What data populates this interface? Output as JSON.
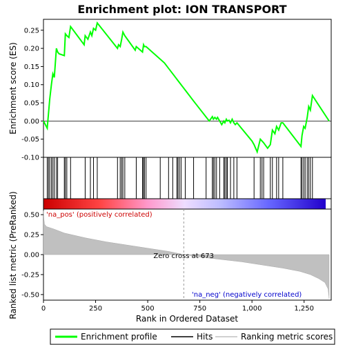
{
  "chart_data": {
    "type": "line",
    "title": "Enrichment plot: ION TRANSPORT",
    "es_panel": {
      "ylabel": "Enrichment score (ES)",
      "ylim": [
        -0.1,
        0.28
      ],
      "yticks": [
        "0.25",
        "0.20",
        "0.15",
        "0.10",
        "0.05",
        "0.00",
        "-0.05",
        "-0.10"
      ],
      "ytick_values": [
        0.25,
        0.2,
        0.15,
        0.1,
        0.05,
        0.0,
        -0.05,
        -0.1
      ],
      "series": [
        {
          "name": "Enrichment profile",
          "color": "#00ff00",
          "x": [
            0,
            18,
            24,
            30,
            38,
            45,
            52,
            62,
            68,
            75,
            100,
            105,
            112,
            122,
            130,
            195,
            200,
            213,
            225,
            232,
            240,
            250,
            258,
            355,
            360,
            368,
            375,
            381,
            390,
            440,
            445,
            455,
            475,
            480,
            484,
            492,
            580,
            600,
            620,
            640,
            660,
            680,
            700,
            720,
            795,
            810,
            815,
            822,
            830,
            835,
            845,
            855,
            865,
            870,
            877,
            882,
            890,
            897,
            905,
            913,
            920,
            928,
            1000,
            1010,
            1025,
            1040,
            1048,
            1056,
            1075,
            1088,
            1098,
            1110,
            1118,
            1128,
            1140,
            1148,
            1235,
            1240,
            1248,
            1255,
            1265,
            1272,
            1280,
            1290,
            1370
          ],
          "y": [
            0.0,
            -0.02,
            0.02,
            0.06,
            0.1,
            0.13,
            0.12,
            0.2,
            0.19,
            0.185,
            0.18,
            0.24,
            0.235,
            0.23,
            0.26,
            0.21,
            0.235,
            0.225,
            0.245,
            0.235,
            0.255,
            0.25,
            0.27,
            0.2,
            0.21,
            0.205,
            0.225,
            0.245,
            0.235,
            0.195,
            0.205,
            0.2,
            0.19,
            0.21,
            0.205,
            0.205,
            0.16,
            0.145,
            0.13,
            0.115,
            0.1,
            0.085,
            0.07,
            0.055,
            0.0,
            0.012,
            0.005,
            0.01,
            0.005,
            0.01,
            0.0,
            -0.01,
            0.0,
            -0.005,
            0.005,
            0.0,
            0.002,
            -0.005,
            0.005,
            -0.005,
            -0.01,
            -0.005,
            -0.055,
            -0.065,
            -0.085,
            -0.05,
            -0.055,
            -0.06,
            -0.075,
            -0.065,
            -0.025,
            -0.035,
            -0.015,
            -0.025,
            -0.005,
            -0.005,
            -0.07,
            -0.04,
            -0.015,
            -0.02,
            0.01,
            0.04,
            0.03,
            0.07,
            0.0
          ]
        }
      ]
    },
    "hits": {
      "name": "Hits",
      "color": "#000000",
      "ranks": [
        18,
        24,
        30,
        38,
        45,
        52,
        62,
        68,
        100,
        105,
        112,
        130,
        200,
        225,
        240,
        258,
        355,
        368,
        375,
        381,
        390,
        445,
        475,
        480,
        484,
        492,
        560,
        600,
        620,
        640,
        645,
        652,
        660,
        680,
        720,
        780,
        810,
        815,
        822,
        830,
        845,
        865,
        870,
        877,
        882,
        897,
        913,
        928,
        1010,
        1040,
        1048,
        1056,
        1088,
        1098,
        1118,
        1128,
        1148,
        1235,
        1240,
        1248,
        1255,
        1265,
        1272,
        1280,
        1290
      ]
    },
    "ranking_panel": {
      "name": "Ranking metric scores",
      "color": "#c0c0c0",
      "ylabel": "Ranked list metric (PreRanked)",
      "xlabel": "Rank in Ordered Dataset",
      "ylim": [
        -0.57,
        0.57
      ],
      "yticks": [
        "0.50",
        "0.25",
        "0.00",
        "-0.25",
        "-0.50"
      ],
      "ytick_values": [
        0.5,
        0.25,
        0.0,
        -0.25,
        -0.5
      ],
      "xlim": [
        0,
        1380
      ],
      "xticks": [
        "0",
        "250",
        "500",
        "750",
        "1,000",
        "1,250"
      ],
      "xtick_values": [
        0,
        250,
        500,
        750,
        1000,
        1250
      ],
      "metric_points": [
        [
          0,
          0.55
        ],
        [
          2,
          0.45
        ],
        [
          5,
          0.38
        ],
        [
          15,
          0.35
        ],
        [
          50,
          0.32
        ],
        [
          100,
          0.27
        ],
        [
          200,
          0.21
        ],
        [
          300,
          0.16
        ],
        [
          400,
          0.12
        ],
        [
          500,
          0.08
        ],
        [
          600,
          0.04
        ],
        [
          673,
          0.0
        ],
        [
          750,
          -0.03
        ],
        [
          850,
          -0.06
        ],
        [
          950,
          -0.09
        ],
        [
          1050,
          -0.13
        ],
        [
          1150,
          -0.17
        ],
        [
          1230,
          -0.21
        ],
        [
          1280,
          -0.25
        ],
        [
          1320,
          -0.3
        ],
        [
          1350,
          -0.35
        ],
        [
          1365,
          -0.43
        ],
        [
          1370,
          -0.55
        ]
      ],
      "zero_cross_label": "Zero cross at 673",
      "zero_cross_rank": 673,
      "pos_label": "'na_pos' (positively correlated)",
      "neg_label": "'na_neg' (negatively correlated)",
      "pos_color": "#cc0000",
      "neg_color": "#0000cc"
    },
    "legend": {
      "placement": "bottom",
      "entries": [
        "Enrichment profile",
        "Hits",
        "Ranking metric scores"
      ]
    }
  }
}
